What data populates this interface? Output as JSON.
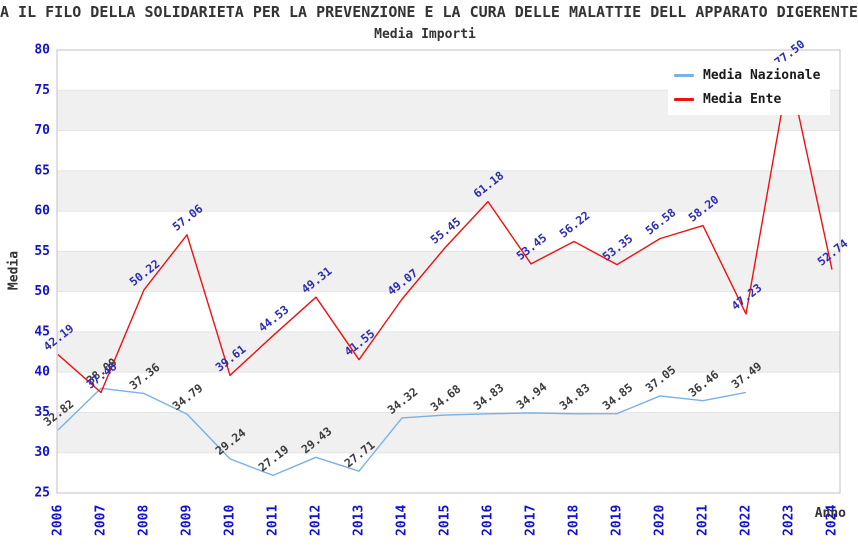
{
  "title": "A IL FILO DELLA SOLIDARIETA PER LA PREVENZIONE E LA CURA DELLE MALATTIE DELL APPARATO DIGERENTE",
  "subtitle": "Media Importi",
  "axes": {
    "x_label": "Anno",
    "y_label": "Media"
  },
  "legend": {
    "position": "top-right",
    "items": [
      {
        "label": "Media Nazionale",
        "color": "#79b1e6"
      },
      {
        "label": "Media Ente",
        "color": "#ee1111"
      }
    ]
  },
  "colors": {
    "tick_label": "#1212cc",
    "title_text": "#333333",
    "band": "#f0f0f0",
    "gridline": "#e4e4e4",
    "plot_border": "#c0c0c0"
  },
  "chart_data": {
    "type": "line",
    "title": "A IL FILO DELLA SOLIDARIETA PER LA PREVENZIONE E LA CURA DELLE MALATTIE DELL APPARATO DIGERENTE",
    "subtitle": "Media Importi",
    "xlabel": "Anno",
    "ylabel": "Media",
    "categories": [
      "2006",
      "2007",
      "2008",
      "2009",
      "2010",
      "2011",
      "2012",
      "2013",
      "2014",
      "2015",
      "2016",
      "2017",
      "2018",
      "2019",
      "2020",
      "2021",
      "2022",
      "2023",
      "2024"
    ],
    "ylim": [
      25,
      80
    ],
    "ytick_step": 5,
    "grid": true,
    "band_color": "#f0f0f0",
    "grid_color": "#e4e4e4",
    "border_color": "#c0c0c0",
    "legend_position": "top-right",
    "series": [
      {
        "name": "Media Nazionale",
        "color": "#79b1e6",
        "label_color": "#3c3c3c",
        "values": [
          32.82,
          38.0,
          37.36,
          34.79,
          29.24,
          27.19,
          29.43,
          27.71,
          34.32,
          34.68,
          34.83,
          34.94,
          34.83,
          34.85,
          37.05,
          36.46,
          37.49,
          null,
          null
        ]
      },
      {
        "name": "Media Ente",
        "color": "#ee1111",
        "label_color": "#2d2db2",
        "values": [
          42.19,
          37.48,
          50.22,
          57.06,
          39.61,
          44.53,
          49.31,
          41.55,
          49.07,
          55.45,
          61.18,
          53.45,
          56.22,
          53.35,
          56.58,
          58.2,
          47.23,
          77.5,
          52.74
        ]
      }
    ]
  }
}
